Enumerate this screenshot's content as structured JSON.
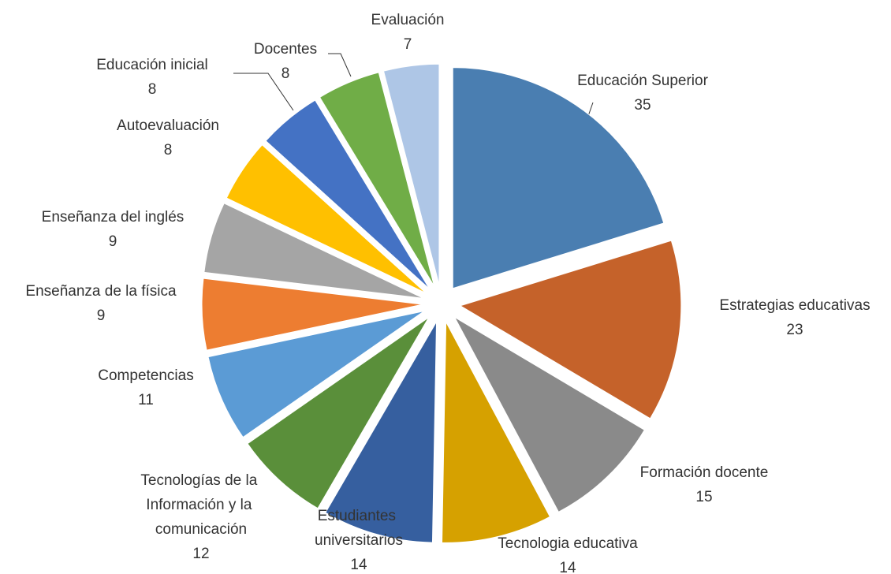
{
  "chart_data": {
    "type": "pie",
    "categories": [
      "Educación Superior",
      "Estrategias educativas",
      "Formación docente",
      "Tecnologia educativa",
      "Estudiantes universitarios",
      "Tecnologías de la Información y la comunicación",
      "Competencias",
      "Enseñanza de la física",
      "Enseñanza del inglés",
      "Autoevaluación",
      "Educación inicial",
      "Docentes",
      "Evaluación"
    ],
    "values": [
      35,
      23,
      15,
      14,
      14,
      12,
      11,
      9,
      9,
      8,
      8,
      8,
      7
    ],
    "colors": [
      "#4a7eb1",
      "#c5622a",
      "#8a8a8a",
      "#d6a100",
      "#365f9f",
      "#5a8f3a",
      "#5b9bd5",
      "#ed7d31",
      "#a5a5a5",
      "#ffc000",
      "#4472c4",
      "#70ad47",
      "#aec6e6"
    ]
  }
}
